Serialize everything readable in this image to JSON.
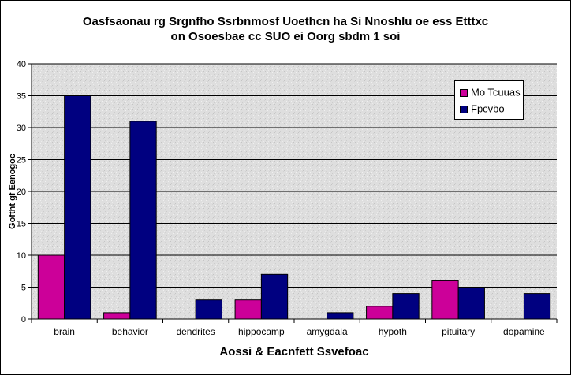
{
  "chart_data": {
    "type": "bar",
    "title_lines": [
      "Oasfsaonau rg Srgnfho Ssrbnmosf Uoethcn ha Si Nnoshlu oe ess Etttxc",
      "on  Osoesbae cc SUO ei Oorg sbdm 1 soi"
    ],
    "xlabel": "Aossi & Eacnfett Ssvefoac",
    "ylabel": "Goftht gf Eenogoc",
    "categories": [
      "brain",
      "behavior",
      "dendrites",
      "hippocamp",
      "amygdala",
      "hypoth",
      "pituitary",
      "dopamine"
    ],
    "series": [
      {
        "name": "Mo Tcuuas",
        "color": "#cc0099",
        "values": [
          10,
          1,
          0,
          3,
          0,
          2,
          6,
          0
        ]
      },
      {
        "name": "Fpcvbo",
        "color": "#000080",
        "values": [
          35,
          31,
          3,
          7,
          1,
          4,
          5,
          4
        ]
      }
    ],
    "ylim": [
      0,
      40
    ],
    "yticks": [
      0,
      5,
      10,
      15,
      20,
      25,
      30,
      35,
      40
    ],
    "grid": true,
    "legend_position": "top-right"
  }
}
